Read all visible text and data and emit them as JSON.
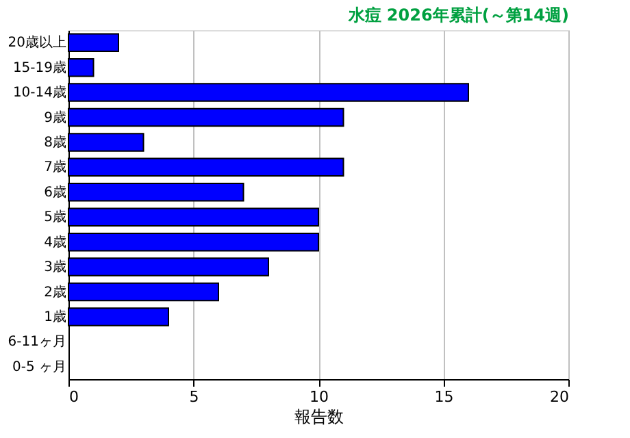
{
  "chart_data": {
    "type": "bar",
    "orientation": "horizontal",
    "title": "水痘 2026年累計(～第14週)",
    "xlabel": "報告数",
    "categories": [
      "20歳以上",
      "15-19歳",
      "10-14歳",
      "9歳",
      "8歳",
      "7歳",
      "6歳",
      "5歳",
      "4歳",
      "3歳",
      "2歳",
      "1歳",
      "6-11ヶ月",
      "0-5 ヶ月"
    ],
    "values": [
      2,
      1,
      16,
      11,
      3,
      11,
      7,
      10,
      10,
      8,
      6,
      4,
      0,
      0
    ],
    "color": "#0000ff",
    "xlim": [
      0,
      20
    ],
    "xticks": [
      0,
      5,
      10,
      15,
      20
    ],
    "grid": "x"
  }
}
